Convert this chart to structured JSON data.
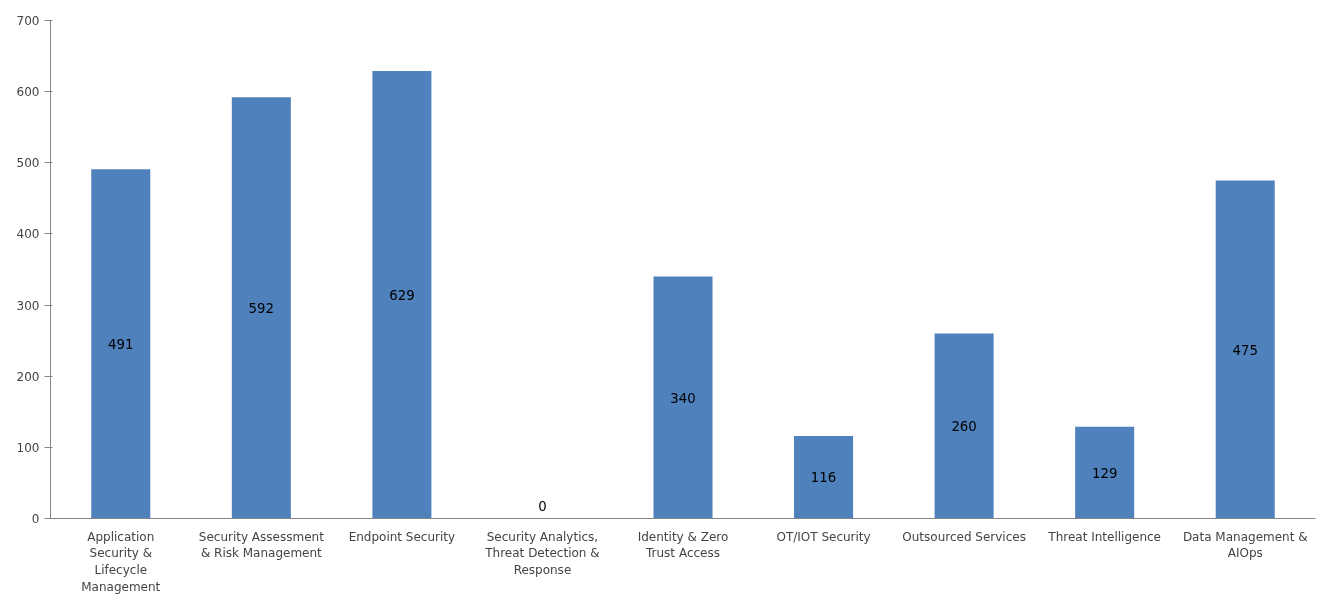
{
  "chart_data": {
    "type": "bar",
    "categories": [
      "Application Security & Lifecycle Management",
      "Security Assessment & Risk Management",
      "Endpoint Security",
      "Security Analytics, Threat Detection & Response",
      "Identity & Zero Trust Access",
      "OT/IOT Security",
      "Outsourced Services",
      "Threat Intelligence",
      "Data Management & AIOps"
    ],
    "values": [
      491,
      592,
      629,
      0,
      340,
      116,
      260,
      129,
      475
    ],
    "color": "#4f81bd",
    "ylim": [
      0,
      700
    ],
    "yticks": [
      0,
      100,
      200,
      300,
      400,
      500,
      600,
      700
    ],
    "data_labels": true,
    "grid": false
  }
}
